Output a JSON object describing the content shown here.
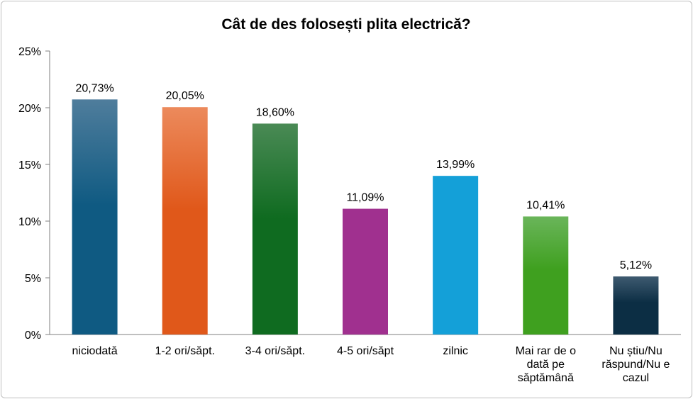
{
  "chart_data": {
    "type": "bar",
    "title": "Cât de des folosești plita electrică?",
    "xlabel": "",
    "ylabel": "",
    "ylim": [
      0,
      25
    ],
    "y_ticks": [
      "0%",
      "5%",
      "10%",
      "15%",
      "20%",
      "25%"
    ],
    "y_tick_values": [
      0,
      5,
      10,
      15,
      20,
      25
    ],
    "grid": false,
    "legend": "none",
    "categories": [
      [
        "niciodată"
      ],
      [
        "1-2 ori/săpt."
      ],
      [
        "3-4 ori/săpt."
      ],
      [
        "4-5 ori/săpt"
      ],
      [
        "zilnic"
      ],
      [
        "Mai rar de o",
        "dată pe",
        "săptămână"
      ],
      [
        "Nu știu/Nu",
        "răspund/Nu e",
        "cazul"
      ]
    ],
    "values": [
      20.73,
      20.05,
      18.6,
      11.09,
      13.99,
      10.41,
      5.12
    ],
    "data_labels": [
      "20,73%",
      "20,05%",
      "18,60%",
      "11,09%",
      "13,99%",
      "10,41%",
      "5,12%"
    ],
    "colors": [
      [
        "#4f7d9c",
        "#0f5a82"
      ],
      [
        "#ec8a5c",
        "#e0581a"
      ],
      [
        "#4a8a55",
        "#0f6b20"
      ],
      [
        "#a0308f",
        "#a0308f"
      ],
      [
        "#14a0d8",
        "#14a0d8"
      ],
      [
        "#6ab55a",
        "#3fa01f"
      ],
      [
        "#3e5a70",
        "#0c2e44"
      ]
    ]
  }
}
